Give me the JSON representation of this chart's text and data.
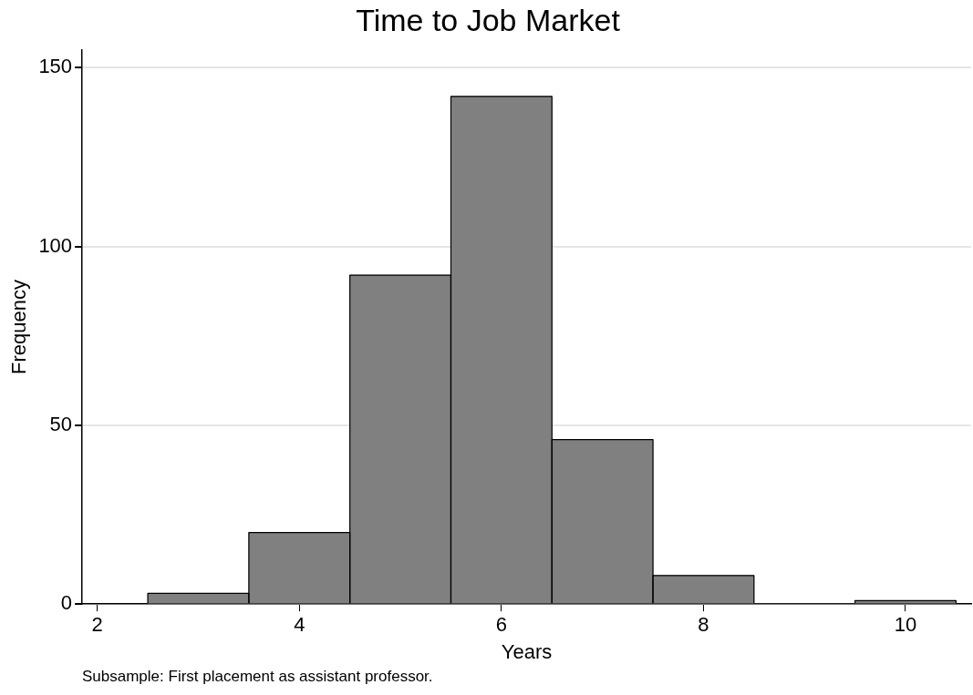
{
  "chart_data": {
    "type": "histogram",
    "title": "Time to Job Market",
    "xlabel": "Years",
    "ylabel": "Frequency",
    "bins": [
      2.5,
      3.5,
      4.5,
      5.5,
      6.5,
      7.5,
      8.5,
      9.5,
      10.5
    ],
    "values": [
      3,
      20,
      92,
      142,
      46,
      8,
      0,
      1
    ],
    "color": "#808080",
    "xlim": [
      1.85,
      10.65
    ],
    "xticks": [
      2,
      4,
      6,
      8,
      10
    ],
    "ylim": [
      0,
      155
    ],
    "yticks": [
      0,
      50,
      100,
      150
    ],
    "grid": "y",
    "legend": false,
    "annotations": [
      "Subsample: First placement as assistant professor."
    ]
  }
}
